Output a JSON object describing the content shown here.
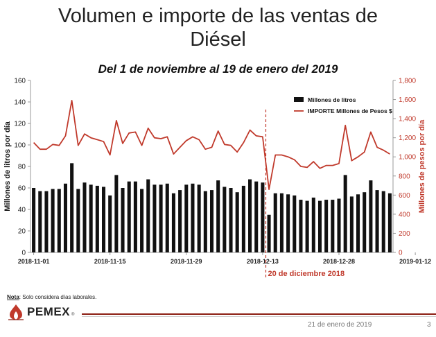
{
  "slide": {
    "title_line1": "Volumen e importe de las ventas de",
    "title_line2": "Diésel",
    "subtitle": "Del 1 de noviembre al 19 de enero del 2019",
    "note_label": "Nota",
    "note_text": ": Solo considera días laborales.",
    "logo_text": "PEMEX",
    "logo_reg": "®",
    "footer_date": "21 de enero de 2019",
    "page_number": "3"
  },
  "chart_data": {
    "type": "bar",
    "title": "",
    "ylabel": "Millones de litros por día",
    "y2label": "Millones de pesos por día",
    "ylim": [
      0,
      160
    ],
    "y2lim": [
      0,
      1800
    ],
    "yticks": [
      "0",
      "20",
      "40",
      "60",
      "80",
      "100",
      "120",
      "140",
      "160"
    ],
    "y2ticks": [
      "0",
      "200",
      "400",
      "600",
      "800",
      "1,000",
      "1,200",
      "1,400",
      "1,600",
      "1,800"
    ],
    "xtick_labels": [
      {
        "label": "2018-11-01",
        "index": 0
      },
      {
        "label": "2018-11-15",
        "index": 12
      },
      {
        "label": "2018-11-29",
        "index": 24
      },
      {
        "label": "2018-12-13",
        "index": 36
      },
      {
        "label": "2018-12-28",
        "index": 48
      },
      {
        "label": "2019-01-12",
        "index": 60
      }
    ],
    "legend_position": "top-right",
    "series": [
      {
        "name": "Millones de litros",
        "type": "bar",
        "axis": "left",
        "color": "#111111",
        "values": [
          60,
          57,
          57,
          59,
          59,
          64,
          83,
          59,
          65,
          63,
          62,
          61,
          53,
          72,
          60,
          66,
          66,
          59,
          68,
          63,
          63,
          64,
          55,
          58,
          63,
          64,
          63,
          57,
          58,
          67,
          61,
          60,
          56,
          62,
          68,
          66,
          65,
          35,
          55,
          55,
          54,
          53,
          49,
          48,
          51,
          48,
          49,
          49,
          50,
          72,
          52,
          54,
          56,
          67,
          58,
          57,
          55
        ]
      },
      {
        "name": "IMPORTE Millones de Pesos $",
        "type": "line",
        "axis": "right",
        "color": "#c0392b",
        "values": [
          1150,
          1080,
          1080,
          1130,
          1120,
          1220,
          1590,
          1120,
          1240,
          1200,
          1180,
          1160,
          1020,
          1380,
          1140,
          1250,
          1260,
          1120,
          1300,
          1200,
          1190,
          1210,
          1030,
          1100,
          1170,
          1210,
          1180,
          1080,
          1100,
          1270,
          1130,
          1120,
          1050,
          1150,
          1280,
          1220,
          1210,
          660,
          1020,
          1020,
          1000,
          970,
          900,
          890,
          950,
          880,
          910,
          910,
          930,
          1330,
          960,
          1000,
          1050,
          1260,
          1100,
          1070,
          1030
        ]
      }
    ],
    "annotation": {
      "label": "20 de diciembre 2018",
      "at_index": 36.5,
      "color": "#c0392b"
    }
  }
}
